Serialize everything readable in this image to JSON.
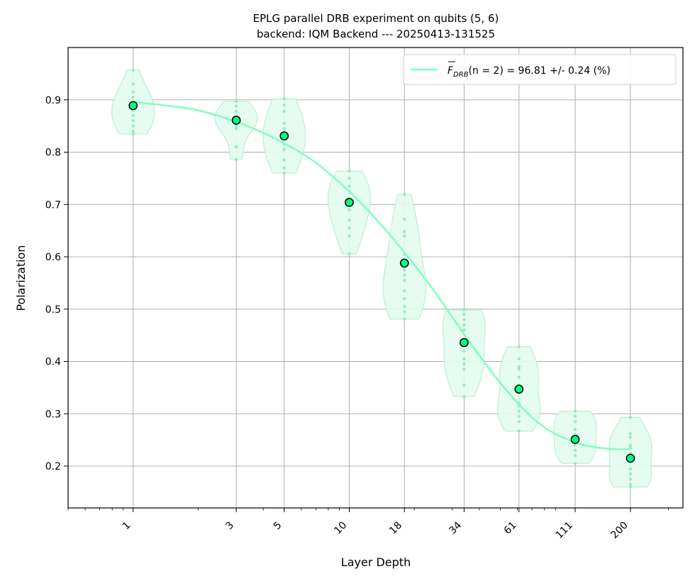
{
  "chart_data": {
    "type": "scatter",
    "title_lines": [
      "EPLG parallel DRB experiment on qubits (5, 6)",
      "backend: IQM Backend --- 20250413-131525"
    ],
    "xlabel": "Layer Depth",
    "ylabel": "Polarization",
    "x_scale": "log",
    "xlim": [
      0.5,
      350
    ],
    "ylim": [
      0.12,
      1.0
    ],
    "x_ticks": [
      1,
      3,
      5,
      10,
      18,
      34,
      61,
      111,
      200
    ],
    "x_tick_labels": [
      "1",
      "3",
      "5",
      "10",
      "18",
      "34",
      "61",
      "111",
      "200"
    ],
    "y_ticks": [
      0.2,
      0.3,
      0.4,
      0.5,
      0.6,
      0.7,
      0.8,
      0.9
    ],
    "y_tick_labels": [
      "0.2",
      "0.3",
      "0.4",
      "0.5",
      "0.6",
      "0.7",
      "0.8",
      "0.9"
    ],
    "grid": true,
    "legend": {
      "placement": "top-right",
      "label_prefix": "F",
      "label_sub": "DRB",
      "label_paren": "(n = 2)",
      "label_rest": " = 96.81 +/- 0.24 (%)"
    },
    "colors": {
      "fit": "#7fffbf",
      "violin_fill": "#e3fcef",
      "violin_edge": "#bdeed2",
      "sample": "#7fe8b0",
      "mean_fill": "#00ff7f",
      "mean_edge": "#000000"
    },
    "means": [
      {
        "x": 1,
        "y": 0.889
      },
      {
        "x": 3,
        "y": 0.861
      },
      {
        "x": 5,
        "y": 0.831
      },
      {
        "x": 10,
        "y": 0.704
      },
      {
        "x": 18,
        "y": 0.588
      },
      {
        "x": 34,
        "y": 0.436
      },
      {
        "x": 61,
        "y": 0.347
      },
      {
        "x": 111,
        "y": 0.251
      },
      {
        "x": 200,
        "y": 0.215
      }
    ],
    "fit_curve": {
      "x": [
        1,
        1.5,
        2,
        3,
        4,
        5,
        7,
        10,
        14,
        18,
        24,
        34,
        45,
        61,
        80,
        111,
        150,
        200
      ],
      "y": [
        0.896,
        0.888,
        0.88,
        0.858,
        0.837,
        0.817,
        0.78,
        0.725,
        0.662,
        0.608,
        0.542,
        0.452,
        0.383,
        0.318,
        0.274,
        0.245,
        0.234,
        0.232
      ]
    },
    "violins": [
      {
        "x": 1,
        "samples": [
          0.957,
          0.93,
          0.915,
          0.905,
          0.895,
          0.888,
          0.88,
          0.87,
          0.86,
          0.85,
          0.84,
          0.835
        ]
      },
      {
        "x": 3,
        "samples": [
          0.897,
          0.888,
          0.878,
          0.868,
          0.862,
          0.855,
          0.85,
          0.845,
          0.81,
          0.786
        ]
      },
      {
        "x": 5,
        "samples": [
          0.902,
          0.89,
          0.878,
          0.855,
          0.845,
          0.838,
          0.825,
          0.815,
          0.805,
          0.785,
          0.77,
          0.76
        ]
      },
      {
        "x": 10,
        "samples": [
          0.764,
          0.75,
          0.735,
          0.725,
          0.712,
          0.7,
          0.69,
          0.67,
          0.655,
          0.64,
          0.606
        ]
      },
      {
        "x": 18,
        "samples": [
          0.719,
          0.672,
          0.648,
          0.64,
          0.605,
          0.575,
          0.565,
          0.555,
          0.535,
          0.52,
          0.505,
          0.495,
          0.481
        ]
      },
      {
        "x": 34,
        "samples": [
          0.498,
          0.49,
          0.48,
          0.47,
          0.46,
          0.42,
          0.405,
          0.395,
          0.385,
          0.355,
          0.333
        ]
      },
      {
        "x": 61,
        "samples": [
          0.428,
          0.405,
          0.39,
          0.385,
          0.37,
          0.355,
          0.32,
          0.315,
          0.305,
          0.295,
          0.285,
          0.267
        ]
      },
      {
        "x": 111,
        "samples": [
          0.305,
          0.295,
          0.285,
          0.27,
          0.26,
          0.24,
          0.23,
          0.22,
          0.205
        ]
      },
      {
        "x": 200,
        "samples": [
          0.293,
          0.262,
          0.255,
          0.24,
          0.235,
          0.225,
          0.195,
          0.185,
          0.175,
          0.165,
          0.16
        ]
      }
    ]
  }
}
